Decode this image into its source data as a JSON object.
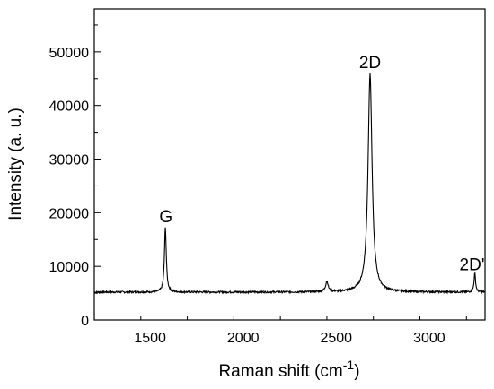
{
  "chart_data": {
    "type": "line",
    "title": "",
    "xlabel": "Raman shift (cm",
    "xlabel_superscript": "-1",
    "xlabel_close": ")",
    "ylabel": "Intensity (a. u.)",
    "xlim": [
      1200,
      3300
    ],
    "ylim": [
      0,
      58000
    ],
    "x_ticks": [
      1500,
      2000,
      2500,
      3000
    ],
    "y_ticks": [
      0,
      10000,
      20000,
      30000,
      40000,
      50000
    ],
    "x_tick_labels": [
      "1500",
      "2000",
      "2500",
      "3000"
    ],
    "y_tick_labels": [
      "0",
      "10000",
      "20000",
      "30000",
      "40000",
      "50000"
    ],
    "grid": false,
    "line_color": "#000000",
    "baseline": 5200,
    "peaks": [
      {
        "label": "G",
        "x": 1582,
        "height": 17200,
        "width": 12,
        "label_x": 1585,
        "label_y": 18200
      },
      {
        "label": "",
        "x": 2450,
        "height": 7200,
        "width": 16
      },
      {
        "label": "2D",
        "x": 2682,
        "height": 45800,
        "width": 26,
        "label_x": 2682,
        "label_y": 47000
      },
      {
        "label": "2D'",
        "x": 3245,
        "height": 8700,
        "width": 10,
        "label_x": 3230,
        "label_y": 9300
      }
    ]
  }
}
